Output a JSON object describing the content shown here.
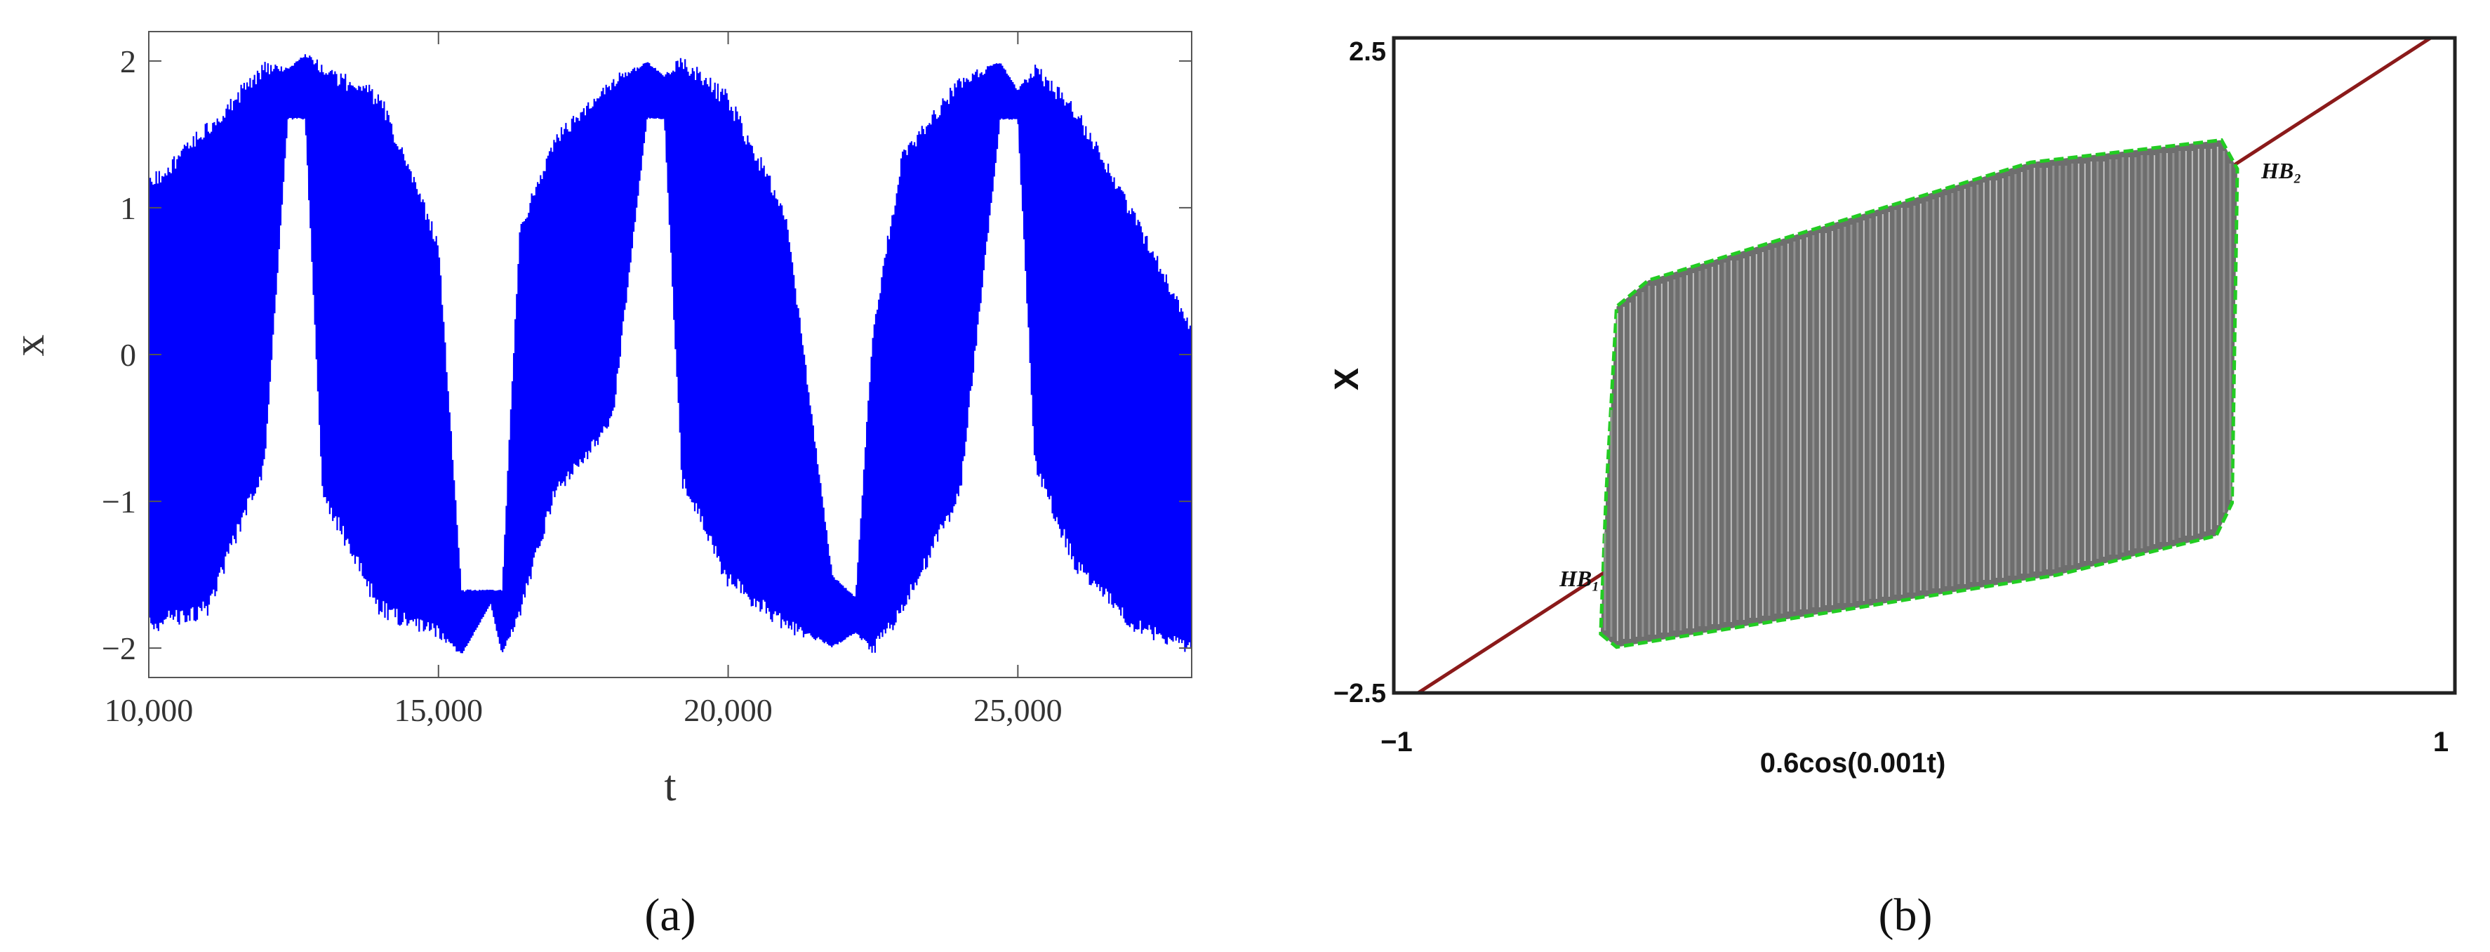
{
  "chart_data": [
    {
      "type": "line",
      "panel_label": "(a)",
      "xlabel": "t",
      "ylabel": "x",
      "xlim": [
        10000,
        28000
      ],
      "ylim": [
        -2.2,
        2.2
      ],
      "xticks": [
        10000,
        15000,
        20000,
        25000
      ],
      "xtick_labels": [
        "10,000",
        "15,000",
        "20,000",
        "25,000"
      ],
      "yticks": [
        -2,
        -1,
        0,
        1,
        2
      ],
      "ytick_labels": [
        "−2",
        "−1",
        "0",
        "1",
        "2"
      ],
      "grid": false,
      "color": "#0000ff",
      "series": [
        {
          "x": [
            10000,
            11000,
            12000,
            12400,
            12700,
            13000,
            14000,
            15000,
            15400,
            15900,
            16100,
            16400,
            17000,
            18000,
            18600,
            18900,
            19200,
            20000,
            21000,
            21800,
            22200,
            22500,
            23000,
            24000,
            24700,
            25000,
            25300,
            26000,
            27000,
            28000
          ],
          "upper": [
            1.2,
            1.6,
            2.0,
            1.95,
            2.05,
            2.0,
            1.8,
            0.8,
            -1.6,
            -1.6,
            -1.6,
            0.9,
            1.5,
            1.9,
            2.0,
            1.9,
            2.05,
            1.8,
            1.0,
            -1.5,
            -1.65,
            0.2,
            1.4,
            1.9,
            2.0,
            1.8,
            2.0,
            1.7,
            1.0,
            0.2
          ],
          "lower": [
            -1.9,
            -1.8,
            -0.8,
            1.6,
            1.6,
            -1.0,
            -1.8,
            -1.95,
            -2.05,
            -1.7,
            -2.05,
            -1.8,
            -1.0,
            -0.5,
            1.6,
            1.6,
            -0.9,
            -1.6,
            -1.9,
            -2.0,
            -1.9,
            -2.05,
            -1.8,
            -1.0,
            1.6,
            1.6,
            -0.8,
            -1.5,
            -1.9,
            -2.05
          ]
        }
      ]
    },
    {
      "type": "area",
      "panel_label": "(b)",
      "xlabel": "0.6cos(0.001t)",
      "ylabel": "X",
      "xlim": [
        -1,
        1
      ],
      "ylim": [
        -2.5,
        2.5
      ],
      "xtick_labels": [
        "−1",
        "1"
      ],
      "ytick_labels": [
        "2.5",
        "−2.5"
      ],
      "annotations": [
        "HB₁",
        "HB₂"
      ],
      "colors": {
        "line": "#8b1a1a",
        "boundary": "#22cc22",
        "fill": "#6e6e6e"
      },
      "line": {
        "x": [
          -1,
          1
        ],
        "y": [
          -2.62,
          2.62
        ]
      },
      "region": [
        [
          -0.61,
          -2.05
        ],
        [
          -0.58,
          -2.15
        ],
        [
          0.25,
          -1.6
        ],
        [
          0.55,
          -1.3
        ],
        [
          0.58,
          -1.05
        ],
        [
          0.59,
          1.5
        ],
        [
          0.56,
          1.72
        ],
        [
          0.2,
          1.55
        ],
        [
          -0.52,
          0.65
        ],
        [
          -0.58,
          0.45
        ],
        [
          -0.6,
          -1.0
        ]
      ]
    }
  ]
}
